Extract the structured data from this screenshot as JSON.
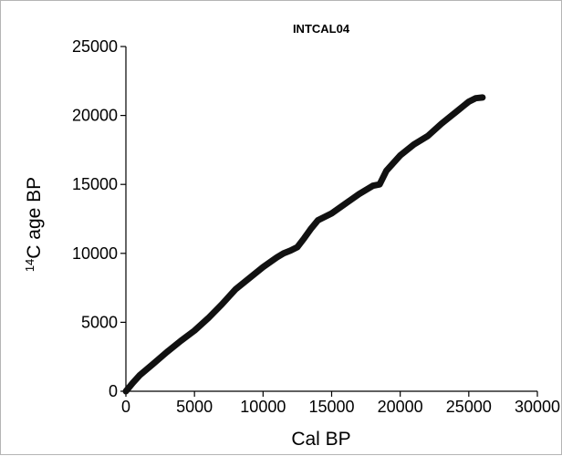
{
  "chart_data": {
    "type": "line",
    "title": "INTCAL04",
    "xlabel": "Cal BP",
    "ylabel": {
      "superscript": "14",
      "text": "C age  BP"
    },
    "xlim": [
      0,
      30000
    ],
    "ylim": [
      0,
      25000
    ],
    "x_ticks": [
      0,
      5000,
      10000,
      15000,
      20000,
      25000,
      30000
    ],
    "y_ticks": [
      0,
      5000,
      10000,
      15000,
      20000,
      25000
    ],
    "grid": false,
    "legend": "none",
    "line_color": "#111111",
    "series": [
      {
        "x": [
          0,
          500,
          1000,
          2000,
          3000,
          4000,
          5000,
          6000,
          7000,
          8000,
          9000,
          10000,
          11000,
          11500,
          12000,
          12500,
          13000,
          13500,
          14000,
          15000,
          16000,
          17000,
          18000,
          18500,
          19000,
          20000,
          21000,
          22000,
          23000,
          24000,
          25000,
          25500,
          26000
        ],
        "y": [
          0,
          600,
          1150,
          2000,
          2850,
          3650,
          4400,
          5300,
          6300,
          7400,
          8200,
          9000,
          9700,
          10000,
          10200,
          10450,
          11100,
          11800,
          12400,
          12900,
          13600,
          14300,
          14900,
          15000,
          16000,
          17100,
          17900,
          18500,
          19400,
          20200,
          21000,
          21250,
          21300
        ]
      }
    ]
  }
}
